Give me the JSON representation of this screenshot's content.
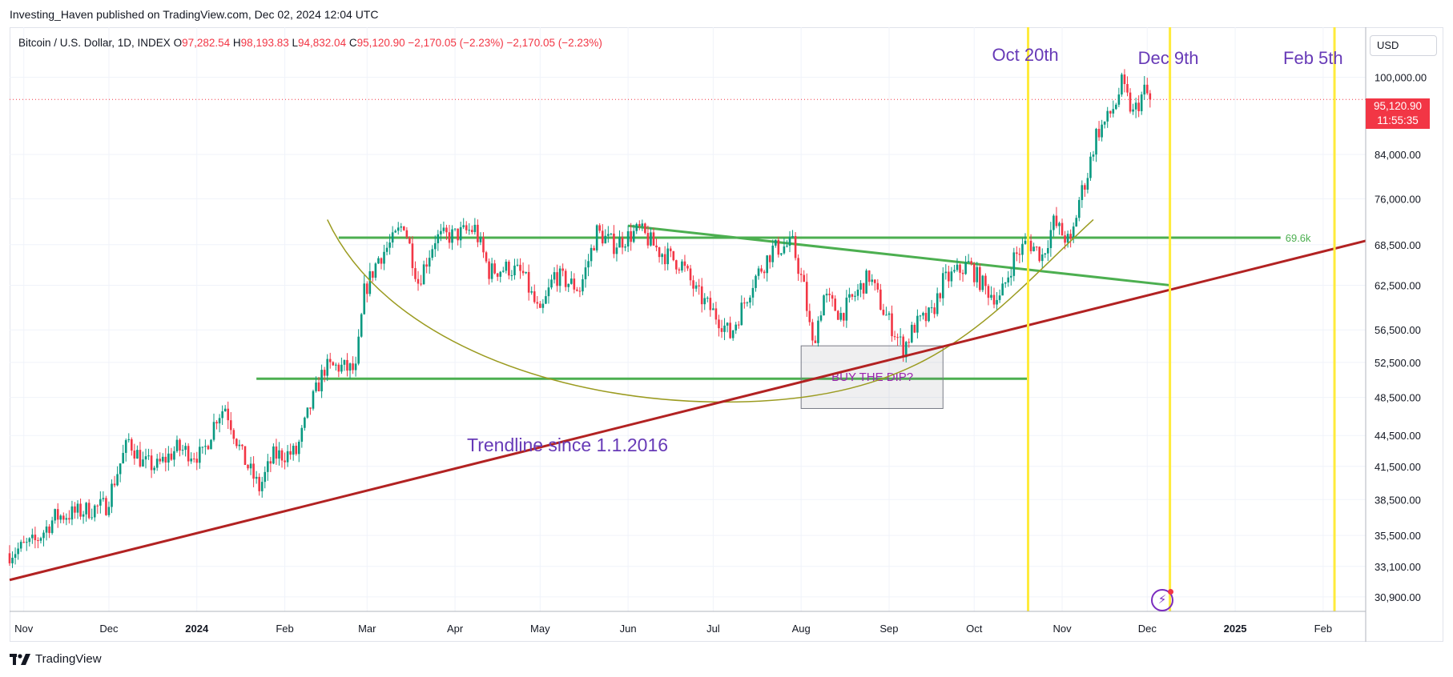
{
  "header": {
    "published": "Investing_Haven published on TradingView.com, Dec 02, 2024 12:04 UTC"
  },
  "legend": {
    "symbol": "Bitcoin / U.S. Dollar, 1D, INDEX",
    "o_label": "O",
    "o_value": "97,282.54",
    "h_label": "H",
    "h_value": "98,193.83",
    "l_label": "L",
    "l_value": "94,832.04",
    "c_label": "C",
    "c_value": "95,120.90",
    "change": "−2,170.05 (−2.23%)",
    "change2": "−2,170.05 (−2.23%)"
  },
  "currency": "USD",
  "last_price": {
    "price": "95,120.90",
    "countdown": "11:55:35"
  },
  "footer": {
    "brand": "TradingView"
  },
  "colors": {
    "up": "#089981",
    "down": "#f23645",
    "support": "#4caf50",
    "trendline": "#b22222",
    "cycle": "#ffeb3b",
    "annotation": "#673ab7",
    "curve": "#9b9b20"
  },
  "chart_data": {
    "type": "candlestick",
    "x_ticks": [
      "Nov",
      "Dec",
      "2024",
      "Feb",
      "Mar",
      "Apr",
      "May",
      "Jun",
      "Jul",
      "Aug",
      "Sep",
      "Oct",
      "Nov",
      "Dec",
      "2025",
      "Feb"
    ],
    "x_range": [
      "2023-10-27",
      "2025-02-16"
    ],
    "y_scale": "log",
    "y_ticks": [
      "100,000.00",
      "84,000.00",
      "76,000.00",
      "68,500.00",
      "62,500.00",
      "56,500.00",
      "52,500.00",
      "48,500.00",
      "44,500.00",
      "41,500.00",
      "38,500.00",
      "35,500.00",
      "33,100.00",
      "30,900.00"
    ],
    "y_tick_values": [
      100000,
      84000,
      76000,
      68500,
      62500,
      56500,
      52500,
      48500,
      44500,
      41500,
      38500,
      35500,
      33100,
      30900
    ],
    "y_range": [
      29900,
      112000
    ],
    "last_close": 95120.9,
    "price_path": [
      [
        "2023-10-27",
        34100
      ],
      [
        "2023-11-05",
        35000
      ],
      [
        "2023-11-12",
        37000
      ],
      [
        "2023-11-20",
        37400
      ],
      [
        "2023-11-30",
        38000
      ],
      [
        "2023-12-05",
        41800
      ],
      [
        "2023-12-08",
        44000
      ],
      [
        "2023-12-13",
        41800
      ],
      [
        "2023-12-18",
        41500
      ],
      [
        "2023-12-25",
        43200
      ],
      [
        "2024-01-03",
        42500
      ],
      [
        "2024-01-08",
        46500
      ],
      [
        "2024-01-11",
        47500
      ],
      [
        "2024-01-17",
        42500
      ],
      [
        "2024-01-23",
        39500
      ],
      [
        "2024-01-28",
        42500
      ],
      [
        "2024-02-05",
        42800
      ],
      [
        "2024-02-10",
        47500
      ],
      [
        "2024-02-15",
        51800
      ],
      [
        "2024-02-20",
        52000
      ],
      [
        "2024-02-26",
        51500
      ],
      [
        "2024-02-29",
        61500
      ],
      [
        "2024-03-05",
        66500
      ],
      [
        "2024-03-10",
        69000
      ],
      [
        "2024-03-14",
        72000
      ],
      [
        "2024-03-19",
        63000
      ],
      [
        "2024-03-25",
        69500
      ],
      [
        "2024-04-01",
        70000
      ],
      [
        "2024-04-08",
        71000
      ],
      [
        "2024-04-13",
        64500
      ],
      [
        "2024-04-20",
        65000
      ],
      [
        "2024-04-25",
        64000
      ],
      [
        "2024-05-01",
        58200
      ],
      [
        "2024-05-06",
        64000
      ],
      [
        "2024-05-15",
        62000
      ],
      [
        "2024-05-21",
        70500
      ],
      [
        "2024-05-27",
        68500
      ],
      [
        "2024-06-05",
        70800
      ],
      [
        "2024-06-12",
        67500
      ],
      [
        "2024-06-20",
        65500
      ],
      [
        "2024-06-25",
        61500
      ],
      [
        "2024-07-04",
        57500
      ],
      [
        "2024-07-07",
        55800
      ],
      [
        "2024-07-15",
        63000
      ],
      [
        "2024-07-22",
        67800
      ],
      [
        "2024-07-29",
        68500
      ],
      [
        "2024-08-02",
        62000
      ],
      [
        "2024-08-05",
        54500
      ],
      [
        "2024-08-09",
        61000
      ],
      [
        "2024-08-15",
        58500
      ],
      [
        "2024-08-25",
        63800
      ],
      [
        "2024-08-30",
        59000
      ],
      [
        "2024-09-06",
        54200
      ],
      [
        "2024-09-10",
        57000
      ],
      [
        "2024-09-16",
        58500
      ],
      [
        "2024-09-20",
        63000
      ],
      [
        "2024-09-29",
        65500
      ],
      [
        "2024-10-05",
        62000
      ],
      [
        "2024-10-10",
        60500
      ],
      [
        "2024-10-15",
        66500
      ],
      [
        "2024-10-20",
        69000
      ],
      [
        "2024-10-25",
        66800
      ],
      [
        "2024-10-29",
        72000
      ],
      [
        "2024-11-04",
        68500
      ],
      [
        "2024-11-07",
        75800
      ],
      [
        "2024-11-10",
        80500
      ],
      [
        "2024-11-13",
        88000
      ],
      [
        "2024-11-17",
        91000
      ],
      [
        "2024-11-20",
        94500
      ],
      [
        "2024-11-22",
        98500
      ],
      [
        "2024-11-26",
        92000
      ],
      [
        "2024-11-30",
        97000
      ],
      [
        "2024-12-02",
        95120.9
      ]
    ],
    "annotations": {
      "horizontal_levels": [
        {
          "price": 69600,
          "label": "69.6k",
          "from": "2024-02-20",
          "to": "2025-01-17"
        },
        {
          "price": 50600,
          "from": "2024-01-22",
          "to": "2024-10-20"
        }
      ],
      "descending_line": [
        [
          "2024-06-01",
          71500
        ],
        [
          "2024-12-09",
          62500
        ]
      ],
      "trendline": {
        "label": "Trendline since 1.1.2016",
        "points": [
          [
            "2023-10-27",
            32100
          ],
          [
            "2025-02-16",
            69100
          ]
        ]
      },
      "cycle_lines": [
        {
          "date": "2024-10-20",
          "label": "Oct 20th"
        },
        {
          "date": "2024-12-09",
          "label": "Dec 9th"
        },
        {
          "date": "2025-02-05",
          "label": "Feb 5th"
        }
      ],
      "box": {
        "label": "BUY THE DIP?",
        "from": "2024-08-01",
        "to": "2024-09-20",
        "price_top": 54500,
        "price_bottom": 47300
      },
      "curve": {
        "start": [
          "2024-02-16",
          72500
        ],
        "bottom": [
          "2024-07-05",
          48000
        ],
        "end": [
          "2024-11-12",
          72500
        ]
      }
    }
  }
}
